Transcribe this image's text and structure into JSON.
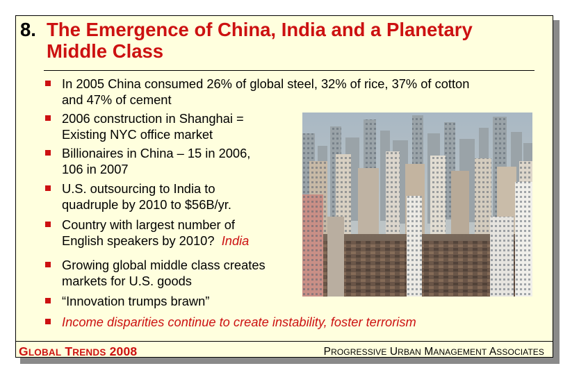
{
  "title": {
    "number": "8.",
    "line1": "The Emergence of China, India and a Planetary",
    "line2": "Middle Class"
  },
  "bullets": [
    {
      "lines": [
        "In 2005 China consumed 26% of global steel, 32% of rice, 37% of cotton",
        "and 47% of cement"
      ]
    },
    {
      "lines": [
        "2006 construction in Shanghai =",
        "Existing NYC office market"
      ]
    },
    {
      "lines": [
        "Billionaires in China – 15 in 2006,",
        "106 in 2007"
      ]
    },
    {
      "lines": [
        "U.S. outsourcing to India to",
        "quadruple by 2010 to $56B/yr."
      ]
    },
    {
      "lines": [
        "Country with largest number of",
        "English speakers by 2010?"
      ],
      "answer": "India"
    },
    {
      "lines": [
        "Growing global middle class creates",
        "markets for U.S. goods"
      ]
    },
    {
      "lines": [
        "“Innovation trumps brawn”"
      ]
    },
    {
      "lines": [
        "Income disparities continue to create instability, foster terrorism"
      ]
    }
  ],
  "footer": {
    "left": {
      "g": "G",
      "lobal": "LOBAL",
      "t": "T",
      "rends": "RENDS",
      "year": "2008"
    },
    "right": {
      "p": "P",
      "rogressive": "ROGRESSIVE",
      "u": "U",
      "rban": "RBAN",
      "m": "M",
      "anagement": "ANAGEMENT",
      "a": "A",
      "ssociates": "SSOCIATES"
    }
  },
  "photo": {
    "subject": "shanghai-skyline-photo"
  },
  "colors": {
    "accent": "#cc1111",
    "background": "#ffffde",
    "marker": "#cc1111"
  }
}
